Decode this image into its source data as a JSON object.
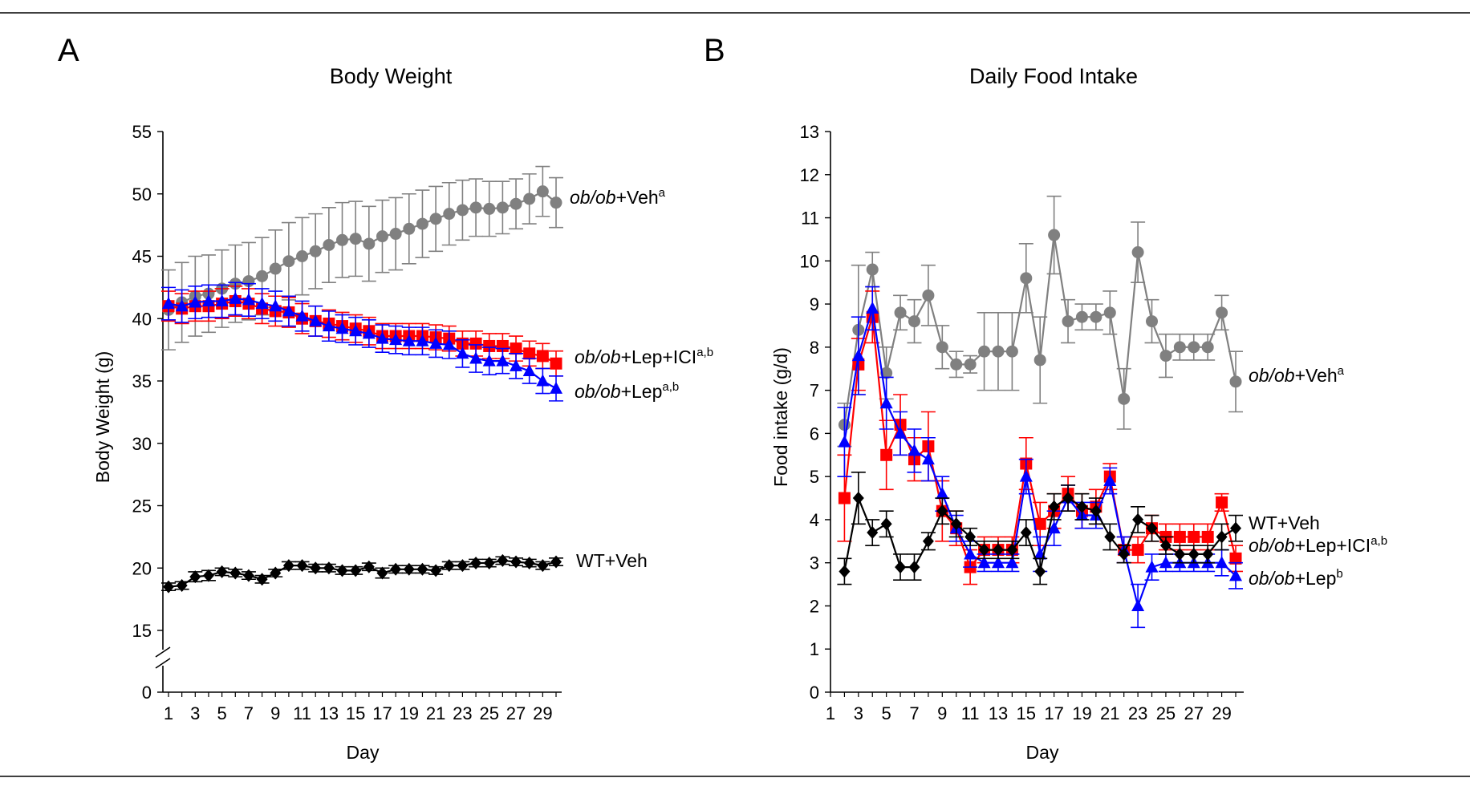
{
  "figure": {
    "colors": {
      "WT+Veh": "#000000",
      "ob/ob+Veh": "#808080",
      "ob/ob+Lep": "#0000ff",
      "ob/ob+Lep+ICI": "#ff0000"
    }
  },
  "chart_data": [
    {
      "type": "line",
      "panel": "A",
      "title": "Body Weight",
      "xlabel": "Day",
      "ylabel": "Body Weight (g)",
      "xlim": [
        1,
        30
      ],
      "ylim": [
        0,
        55
      ],
      "y_axis_break": true,
      "yticks": [
        "0",
        "15",
        "20",
        "25",
        "30",
        "35",
        "40",
        "45",
        "50",
        "55"
      ],
      "xticks": [
        "1",
        "3",
        "5",
        "7",
        "9",
        "11",
        "13",
        "15",
        "17",
        "19",
        "21",
        "23",
        "25",
        "27",
        "29"
      ],
      "grid": false,
      "legend": "inline labels at right end of lines",
      "x": [
        1,
        2,
        3,
        4,
        5,
        6,
        7,
        8,
        9,
        10,
        11,
        12,
        13,
        14,
        15,
        16,
        17,
        18,
        19,
        20,
        21,
        22,
        23,
        24,
        25,
        26,
        27,
        28,
        29,
        30
      ],
      "series": [
        {
          "name": "ob/ob+Veh",
          "label_main": "ob/ob",
          "label_rest": "+Veh",
          "label_sup": "a",
          "color": "#808080",
          "marker": "circle",
          "values": [
            40.7,
            41.3,
            41.8,
            42.0,
            42.4,
            42.8,
            43.0,
            43.4,
            44.0,
            44.6,
            45.0,
            45.4,
            45.9,
            46.3,
            46.4,
            46.0,
            46.6,
            46.8,
            47.2,
            47.6,
            48.0,
            48.4,
            48.7,
            48.9,
            48.8,
            48.9,
            49.2,
            49.6,
            50.2,
            49.3
          ],
          "errors": [
            3.2,
            3.2,
            3.2,
            3.1,
            3.1,
            3.1,
            3.1,
            3.1,
            3.1,
            3.1,
            3.1,
            3.0,
            3.0,
            3.0,
            3.0,
            3.0,
            2.9,
            2.9,
            2.8,
            2.7,
            2.6,
            2.5,
            2.4,
            2.3,
            2.2,
            2.1,
            2.0,
            2.0,
            2.0,
            2.0
          ]
        },
        {
          "name": "ob/ob+Lep+ICI",
          "label_main": "ob/ob",
          "label_rest": "+Lep+ICI",
          "label_sup": "a,b",
          "color": "#ff0000",
          "marker": "square",
          "values": [
            41.0,
            40.8,
            41.0,
            41.0,
            41.2,
            41.4,
            41.2,
            40.8,
            40.6,
            40.5,
            40.0,
            39.8,
            39.6,
            39.4,
            39.2,
            39.0,
            38.6,
            38.6,
            38.6,
            38.6,
            38.5,
            38.4,
            38.0,
            38.0,
            37.8,
            37.8,
            37.6,
            37.2,
            37.0,
            36.4
          ],
          "errors": [
            1.2,
            1.2,
            1.2,
            1.2,
            1.2,
            1.2,
            1.2,
            1.2,
            1.2,
            1.2,
            1.2,
            1.2,
            1.1,
            1.1,
            1.1,
            1.1,
            1.0,
            1.0,
            1.0,
            1.0,
            1.0,
            1.0,
            1.0,
            1.0,
            1.0,
            1.0,
            1.0,
            1.0,
            1.0,
            1.0
          ]
        },
        {
          "name": "ob/ob+Lep",
          "label_main": "ob/ob",
          "label_rest": "+Lep",
          "label_sup": "a,b",
          "color": "#0000ff",
          "marker": "triangle",
          "values": [
            41.2,
            41.0,
            41.3,
            41.4,
            41.4,
            41.6,
            41.5,
            41.2,
            41.0,
            40.6,
            40.2,
            39.8,
            39.4,
            39.2,
            39.0,
            38.8,
            38.4,
            38.3,
            38.2,
            38.2,
            38.0,
            37.9,
            37.2,
            36.8,
            36.6,
            36.6,
            36.2,
            35.8,
            35.0,
            34.4
          ],
          "errors": [
            1.3,
            1.3,
            1.3,
            1.3,
            1.3,
            1.3,
            1.3,
            1.2,
            1.2,
            1.2,
            1.2,
            1.2,
            1.2,
            1.1,
            1.1,
            1.1,
            1.1,
            1.1,
            1.1,
            1.1,
            1.1,
            1.1,
            1.1,
            1.1,
            1.1,
            1.0,
            1.0,
            1.0,
            1.0,
            1.0
          ]
        },
        {
          "name": "WT+Veh",
          "label_main": "",
          "label_rest": "WT+Veh",
          "label_sup": "",
          "color": "#000000",
          "marker": "diamond",
          "values": [
            18.5,
            18.6,
            19.3,
            19.4,
            19.7,
            19.6,
            19.4,
            19.1,
            19.6,
            20.2,
            20.2,
            20.0,
            20.0,
            19.8,
            19.8,
            20.1,
            19.6,
            19.9,
            19.9,
            19.9,
            19.8,
            20.2,
            20.2,
            20.4,
            20.4,
            20.6,
            20.5,
            20.4,
            20.2,
            20.5
          ],
          "errors": [
            0.3,
            0.3,
            0.4,
            0.4,
            0.3,
            0.3,
            0.3,
            0.3,
            0.3,
            0.3,
            0.3,
            0.3,
            0.3,
            0.3,
            0.3,
            0.3,
            0.4,
            0.3,
            0.3,
            0.3,
            0.3,
            0.3,
            0.3,
            0.3,
            0.3,
            0.3,
            0.3,
            0.3,
            0.3,
            0.3
          ]
        }
      ]
    },
    {
      "type": "line",
      "panel": "B",
      "title": "Daily Food Intake",
      "xlabel": "Day",
      "ylabel": "Food intake (g/d)",
      "xlim": [
        1,
        30
      ],
      "ylim": [
        0,
        13
      ],
      "yticks": [
        "0",
        "1",
        "2",
        "3",
        "4",
        "5",
        "6",
        "7",
        "8",
        "9",
        "10",
        "11",
        "12",
        "13"
      ],
      "xticks": [
        "1",
        "3",
        "5",
        "7",
        "9",
        "11",
        "13",
        "15",
        "17",
        "19",
        "21",
        "23",
        "25",
        "27",
        "29"
      ],
      "grid": false,
      "legend": "inline labels at right end of lines",
      "x": [
        2,
        3,
        4,
        5,
        6,
        7,
        8,
        9,
        10,
        11,
        12,
        13,
        14,
        15,
        16,
        17,
        18,
        19,
        20,
        21,
        22,
        23,
        24,
        25,
        26,
        27,
        28,
        29,
        30
      ],
      "series": [
        {
          "name": "ob/ob+Veh",
          "label_main": "ob/ob",
          "label_rest": "+Veh",
          "label_sup": "a",
          "color": "#808080",
          "marker": "circle",
          "values": [
            6.2,
            8.4,
            9.8,
            7.4,
            8.8,
            8.6,
            9.2,
            8.0,
            7.6,
            7.6,
            7.9,
            7.9,
            7.9,
            9.6,
            7.7,
            10.6,
            8.6,
            8.7,
            8.7,
            8.8,
            6.8,
            10.2,
            8.6,
            7.8,
            8.0,
            8.0,
            8.0,
            8.8,
            7.2
          ],
          "errors": [
            0.5,
            1.5,
            0.4,
            0.6,
            0.4,
            0.5,
            0.7,
            0.5,
            0.3,
            0.2,
            0.9,
            0.9,
            0.9,
            0.8,
            1.0,
            0.9,
            0.5,
            0.3,
            0.3,
            0.5,
            0.7,
            0.7,
            0.5,
            0.5,
            0.3,
            0.3,
            0.3,
            0.4,
            0.7
          ]
        },
        {
          "name": "ob/ob+Lep+ICI",
          "label_main": "ob/ob",
          "label_rest": "+Lep+ICI",
          "label_sup": "a,b",
          "color": "#ff0000",
          "marker": "square",
          "values": [
            4.5,
            7.6,
            8.7,
            5.5,
            6.2,
            5.4,
            5.7,
            4.2,
            3.8,
            2.9,
            3.3,
            3.3,
            3.3,
            5.3,
            3.9,
            4.2,
            4.6,
            4.2,
            4.3,
            5.0,
            3.3,
            3.3,
            3.8,
            3.6,
            3.6,
            3.6,
            3.6,
            4.4,
            3.1
          ],
          "errors": [
            1.0,
            0.6,
            0.6,
            0.8,
            0.7,
            0.5,
            0.8,
            0.7,
            0.4,
            0.4,
            0.3,
            0.3,
            0.3,
            0.6,
            0.5,
            0.4,
            0.4,
            0.4,
            0.4,
            0.3,
            0.3,
            0.3,
            0.3,
            0.3,
            0.3,
            0.3,
            0.3,
            0.2,
            0.3
          ]
        },
        {
          "name": "ob/ob+Lep",
          "label_main": "ob/ob",
          "label_rest": "+Lep",
          "label_sup": "b",
          "color": "#0000ff",
          "marker": "triangle",
          "values": [
            5.8,
            7.8,
            8.9,
            6.7,
            6.0,
            5.6,
            5.4,
            4.6,
            3.8,
            3.2,
            3.0,
            3.0,
            3.0,
            5.0,
            3.2,
            3.8,
            4.5,
            4.1,
            4.1,
            4.9,
            3.3,
            2.0,
            2.9,
            3.0,
            3.0,
            3.0,
            3.0,
            3.0,
            2.7
          ],
          "errors": [
            0.8,
            0.9,
            0.5,
            0.6,
            0.5,
            0.5,
            0.5,
            0.4,
            0.3,
            0.3,
            0.2,
            0.2,
            0.2,
            0.4,
            0.4,
            0.4,
            0.3,
            0.3,
            0.3,
            0.3,
            0.3,
            0.5,
            0.3,
            0.2,
            0.2,
            0.2,
            0.2,
            0.3,
            0.3
          ]
        },
        {
          "name": "WT+Veh",
          "label_main": "",
          "label_rest": "WT+Veh",
          "label_sup": "",
          "color": "#000000",
          "marker": "diamond",
          "values": [
            2.8,
            4.5,
            3.7,
            3.9,
            2.9,
            2.9,
            3.5,
            4.2,
            3.9,
            3.6,
            3.3,
            3.3,
            3.3,
            3.7,
            2.8,
            4.3,
            4.5,
            4.3,
            4.2,
            3.6,
            3.2,
            4.0,
            3.8,
            3.4,
            3.2,
            3.2,
            3.2,
            3.6,
            3.8
          ],
          "errors": [
            0.3,
            0.6,
            0.3,
            0.3,
            0.3,
            0.3,
            0.2,
            0.3,
            0.3,
            0.2,
            0.2,
            0.2,
            0.2,
            0.3,
            0.3,
            0.3,
            0.3,
            0.3,
            0.3,
            0.3,
            0.2,
            0.3,
            0.3,
            0.2,
            0.2,
            0.2,
            0.2,
            0.3,
            0.3
          ]
        }
      ]
    }
  ]
}
